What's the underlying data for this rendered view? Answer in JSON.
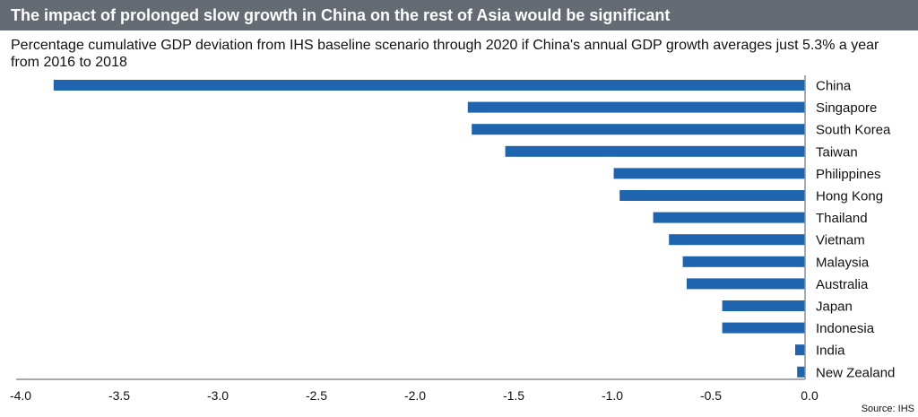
{
  "chart_data": {
    "type": "bar",
    "orientation": "horizontal",
    "title": "The impact of prolonged slow growth in China on the rest of Asia would be significant",
    "subtitle": "Percentage cumulative GDP deviation from IHS baseline scenario through 2020 if China's annual GDP growth averages just 5.3% a year from 2016 to 2018",
    "categories": [
      "China",
      "Singapore",
      "South Korea",
      "Taiwan",
      "Philippines",
      "Hong Kong",
      "Thailand",
      "Vietnam",
      "Malaysia",
      "Australia",
      "Japan",
      "Indonesia",
      "India",
      "New Zealand"
    ],
    "values": [
      -3.81,
      -1.71,
      -1.69,
      -1.52,
      -0.97,
      -0.94,
      -0.77,
      -0.69,
      -0.62,
      -0.6,
      -0.42,
      -0.42,
      -0.05,
      -0.04
    ],
    "xlim": [
      -4.0,
      0.0
    ],
    "xticks": [
      "-4.0",
      "-3.5",
      "-3.0",
      "-2.5",
      "-2.0",
      "-1.5",
      "-1.0",
      "-0.5",
      "0.0"
    ],
    "xlabel": "",
    "ylabel": "",
    "grid": false,
    "legend": "none",
    "bar_color": "#1f64ae",
    "source": "Source: IHS"
  }
}
